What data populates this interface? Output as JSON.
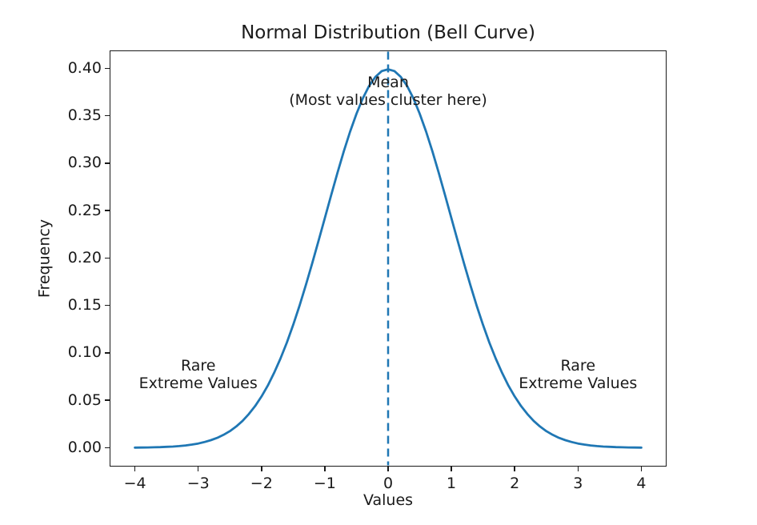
{
  "chart_data": {
    "type": "line",
    "title": "Normal Distribution (Bell Curve)",
    "xlabel": "Values",
    "ylabel": "Frequency",
    "xlim": [
      -4.4,
      4.4
    ],
    "ylim": [
      -0.0199,
      0.4188
    ],
    "grid": false,
    "legend": null,
    "xticks": {
      "values": [
        -4,
        -3,
        -2,
        -1,
        0,
        1,
        2,
        3,
        4
      ],
      "labels": [
        "−4",
        "−3",
        "−2",
        "−1",
        "0",
        "1",
        "2",
        "3",
        "4"
      ]
    },
    "yticks": {
      "values": [
        0.0,
        0.05,
        0.1,
        0.15,
        0.2,
        0.25,
        0.3,
        0.35,
        0.4
      ],
      "labels": [
        "0.00",
        "0.05",
        "0.10",
        "0.15",
        "0.20",
        "0.25",
        "0.30",
        "0.35",
        "0.40"
      ]
    },
    "series": [
      {
        "name": "normal-pdf-curve",
        "color": "#1f77b4",
        "linewidth": 2.8,
        "x": [
          -4.0,
          -3.9,
          -3.8,
          -3.7,
          -3.6,
          -3.5,
          -3.4,
          -3.3,
          -3.2,
          -3.1,
          -3.0,
          -2.9,
          -2.8,
          -2.7,
          -2.6,
          -2.5,
          -2.4,
          -2.3,
          -2.2,
          -2.1,
          -2.0,
          -1.9,
          -1.8,
          -1.7,
          -1.6,
          -1.5,
          -1.4,
          -1.3,
          -1.2,
          -1.1,
          -1.0,
          -0.9,
          -0.8,
          -0.7,
          -0.6,
          -0.5,
          -0.4,
          -0.3,
          -0.2,
          -0.1,
          0.0,
          0.1,
          0.2,
          0.3,
          0.4,
          0.5,
          0.6,
          0.7,
          0.8,
          0.9,
          1.0,
          1.1,
          1.2,
          1.3,
          1.4,
          1.5,
          1.6,
          1.7,
          1.8,
          1.9,
          2.0,
          2.1,
          2.2,
          2.3,
          2.4,
          2.5,
          2.6,
          2.7,
          2.8,
          2.9,
          3.0,
          3.1,
          3.2,
          3.3,
          3.4,
          3.5,
          3.6,
          3.7,
          3.8,
          3.9,
          4.0
        ],
        "y": [
          0.0001,
          0.0002,
          0.0003,
          0.0004,
          0.0006,
          0.0009,
          0.0012,
          0.0017,
          0.0024,
          0.0033,
          0.0044,
          0.006,
          0.0079,
          0.0104,
          0.0136,
          0.0175,
          0.0224,
          0.0283,
          0.0355,
          0.044,
          0.054,
          0.0656,
          0.079,
          0.094,
          0.1109,
          0.1295,
          0.1497,
          0.1714,
          0.1942,
          0.2179,
          0.242,
          0.2661,
          0.2897,
          0.3123,
          0.3332,
          0.3521,
          0.3683,
          0.3814,
          0.391,
          0.397,
          0.3989,
          0.397,
          0.391,
          0.3814,
          0.3683,
          0.3521,
          0.3332,
          0.3123,
          0.2897,
          0.2661,
          0.242,
          0.2179,
          0.1942,
          0.1714,
          0.1497,
          0.1295,
          0.1109,
          0.094,
          0.079,
          0.0656,
          0.054,
          0.044,
          0.0355,
          0.0283,
          0.0224,
          0.0175,
          0.0136,
          0.0104,
          0.0079,
          0.006,
          0.0044,
          0.0033,
          0.0024,
          0.0017,
          0.0012,
          0.0009,
          0.0006,
          0.0004,
          0.0003,
          0.0002,
          0.0001
        ]
      }
    ],
    "vline": {
      "x": 0,
      "color": "#1f77b4",
      "style": "dashed",
      "linewidth": 2.5
    },
    "annotations": [
      {
        "id": "mean",
        "x": 0,
        "y": 0.376,
        "text_lines": [
          "Mean",
          "(Most values cluster here)"
        ]
      },
      {
        "id": "rare-left",
        "x": -3,
        "y": 0.077,
        "text_lines": [
          "Rare",
          "Extreme Values"
        ]
      },
      {
        "id": "rare-right",
        "x": 3,
        "y": 0.077,
        "text_lines": [
          "Rare",
          "Extreme Values"
        ]
      }
    ],
    "colors": {
      "curve": "#1f77b4",
      "text": "#1a1a1a",
      "spine": "#1a1a1a",
      "background": "#ffffff"
    }
  }
}
